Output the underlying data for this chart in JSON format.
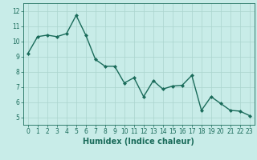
{
  "x": [
    0,
    1,
    2,
    3,
    4,
    5,
    6,
    7,
    8,
    9,
    10,
    11,
    12,
    13,
    14,
    15,
    16,
    17,
    18,
    19,
    20,
    21,
    22,
    23
  ],
  "y": [
    9.2,
    10.3,
    10.4,
    10.3,
    10.5,
    11.7,
    10.4,
    8.8,
    8.35,
    8.35,
    7.25,
    7.6,
    6.35,
    7.4,
    6.85,
    7.05,
    7.1,
    7.75,
    5.45,
    6.35,
    5.9,
    5.45,
    5.4,
    5.1
  ],
  "line_color": "#1a6b5a",
  "marker": "D",
  "marker_size": 2,
  "line_width": 1.0,
  "xlabel": "Humidex (Indice chaleur)",
  "xlabel_fontsize": 7,
  "xlim": [
    -0.5,
    23.5
  ],
  "ylim": [
    4.5,
    12.5
  ],
  "yticks": [
    5,
    6,
    7,
    8,
    9,
    10,
    11,
    12
  ],
  "xticks": [
    0,
    1,
    2,
    3,
    4,
    5,
    6,
    7,
    8,
    9,
    10,
    11,
    12,
    13,
    14,
    15,
    16,
    17,
    18,
    19,
    20,
    21,
    22,
    23
  ],
  "bg_color": "#c8ece8",
  "grid_color": "#aad4ce",
  "tick_fontsize": 5.5
}
